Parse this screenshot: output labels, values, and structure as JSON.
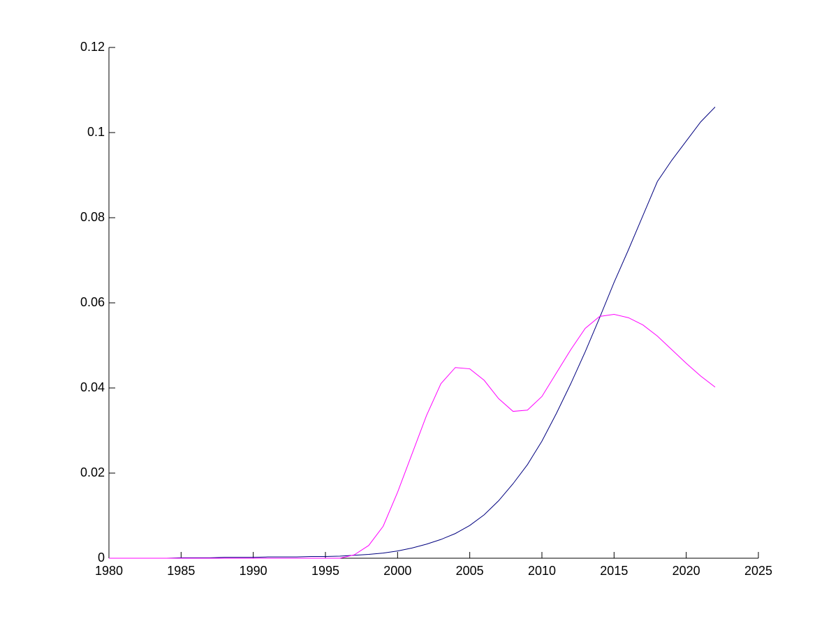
{
  "chart_data": {
    "type": "line",
    "x": [
      1980,
      1981,
      1982,
      1983,
      1984,
      1985,
      1986,
      1987,
      1988,
      1989,
      1990,
      1991,
      1992,
      1993,
      1994,
      1995,
      1996,
      1997,
      1998,
      1999,
      2000,
      2001,
      2002,
      2003,
      2004,
      2005,
      2006,
      2007,
      2008,
      2009,
      2010,
      2011,
      2012,
      2013,
      2014,
      2015,
      2016,
      2017,
      2018,
      2019,
      2020,
      2021,
      2022
    ],
    "series": [
      {
        "color": "#00007f",
        "values": [
          0,
          0,
          0,
          0,
          0,
          0.0001,
          0.0001,
          0.0001,
          0.0002,
          0.0002,
          0.0002,
          0.0003,
          0.0003,
          0.0003,
          0.0004,
          0.0004,
          0.0005,
          0.0007,
          0.0009,
          0.0012,
          0.0017,
          0.0024,
          0.0033,
          0.0044,
          0.0058,
          0.0077,
          0.0102,
          0.0135,
          0.0175,
          0.022,
          0.0275,
          0.034,
          0.041,
          0.0485,
          0.0565,
          0.0648,
          0.0725,
          0.0805,
          0.0885,
          0.0935,
          0.098,
          0.1025,
          0.106
        ]
      },
      {
        "color": "#ff00ff",
        "values": [
          0,
          0,
          0,
          0,
          0,
          0,
          0,
          0,
          0,
          0,
          0,
          0,
          0,
          0,
          0,
          0,
          0,
          0.0008,
          0.003,
          0.0075,
          0.0155,
          0.0245,
          0.0335,
          0.041,
          0.0448,
          0.0445,
          0.0418,
          0.0375,
          0.0345,
          0.0348,
          0.038,
          0.0435,
          0.049,
          0.054,
          0.0568,
          0.0573,
          0.0565,
          0.0548,
          0.0522,
          0.049,
          0.0458,
          0.0428,
          0.0402
        ]
      }
    ],
    "xlim": [
      1980,
      2025
    ],
    "xticks": [
      1980,
      1985,
      1990,
      1995,
      2000,
      2005,
      2010,
      2015,
      2020,
      2025
    ],
    "ylim": [
      0,
      0.12
    ],
    "yticks": [
      0,
      0.02,
      0.04,
      0.06,
      0.08,
      0.1,
      0.12
    ]
  }
}
